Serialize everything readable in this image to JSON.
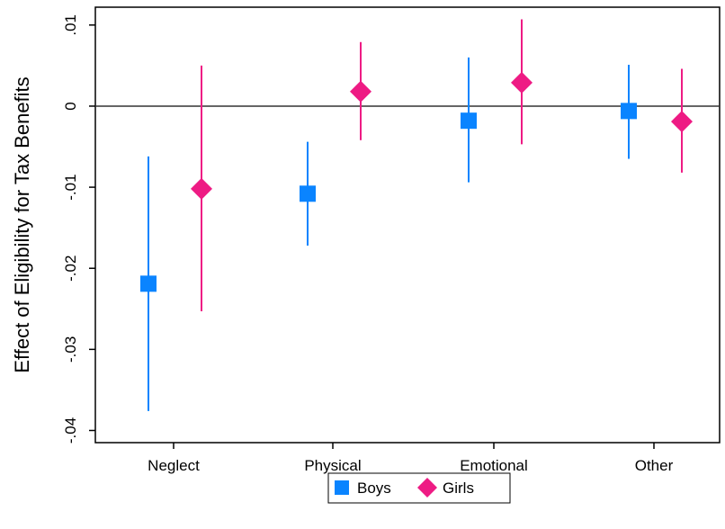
{
  "chart_data": {
    "type": "scatter",
    "subtype": "coefficient-plot-with-confidence-intervals",
    "title": "",
    "xlabel": "",
    "ylabel": "Effect of Eligibility for Tax Benefits",
    "categories": [
      "Neglect",
      "Physical",
      "Emotional",
      "Other"
    ],
    "ylim": [
      -0.0415,
      0.0122
    ],
    "yticks": [
      0.01,
      0,
      -0.01,
      -0.02,
      -0.03,
      -0.04
    ],
    "ytick_labels": [
      ".01",
      "0",
      "-.01",
      "-.02",
      "-.03",
      "-.04"
    ],
    "reference_line": 0,
    "grid": false,
    "legend": {
      "position": "bottom-center"
    },
    "series": [
      {
        "name": "Boys",
        "marker": "square",
        "color": "#0a84ff",
        "values": [
          -0.0219,
          -0.0108,
          -0.0018,
          -0.0006
        ],
        "ci_low": [
          -0.0376,
          -0.0172,
          -0.0094,
          -0.0065
        ],
        "ci_high": [
          -0.0062,
          -0.0044,
          0.006,
          0.0051
        ]
      },
      {
        "name": "Girls",
        "marker": "diamond",
        "color": "#ee1b84",
        "values": [
          -0.0102,
          0.0018,
          0.0029,
          -0.0019
        ],
        "ci_low": [
          -0.0253,
          -0.0042,
          -0.0047,
          -0.0082
        ],
        "ci_high": [
          0.005,
          0.0079,
          0.0107,
          0.0046
        ]
      }
    ]
  }
}
